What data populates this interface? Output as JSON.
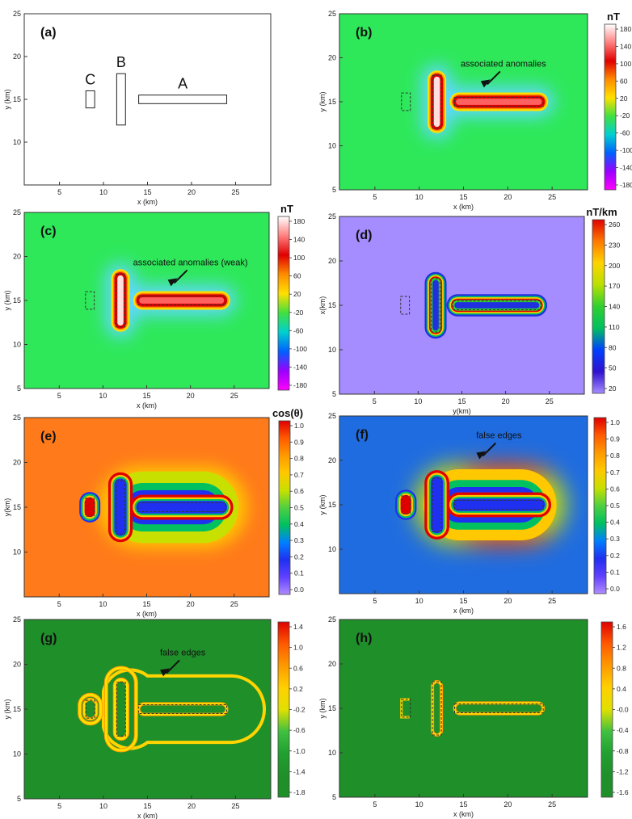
{
  "figure": {
    "panels": [
      {
        "id": "a",
        "label": "(a)",
        "plot": "model",
        "xlabel": "x (km)",
        "ylabel": "y (km)",
        "xticks": [
          5,
          10,
          15,
          20,
          25
        ],
        "yticks": [
          10,
          15,
          20,
          25
        ],
        "xlim": [
          1,
          29
        ],
        "ylim": [
          5,
          25
        ],
        "bodies": [
          {
            "name": "A",
            "x0": 14,
            "x1": 24,
            "y0": 14.5,
            "y1": 15.5
          },
          {
            "name": "B",
            "x0": 11.5,
            "x1": 12.5,
            "y0": 12,
            "y1": 18
          },
          {
            "name": "C",
            "x0": 8,
            "x1": 9,
            "y0": 14,
            "y1": 16
          }
        ]
      },
      {
        "id": "b",
        "label": "(b)",
        "plot": "field",
        "background": "#2ee85a",
        "xlabel": "x (km)",
        "ylabel": "y (km)",
        "xticks": [
          5,
          10,
          15,
          20,
          25
        ],
        "yticks": [
          5,
          10,
          15,
          20,
          25
        ],
        "xlim": [
          1,
          29
        ],
        "ylim": [
          5,
          25
        ],
        "colorbar": {
          "title": "nT",
          "ticks": [
            "180",
            "140",
            "100",
            "60",
            "20",
            "-20",
            "-60",
            "-100",
            "-140",
            "-180"
          ],
          "colors": [
            "#ffffff",
            "#ff8080",
            "#e00000",
            "#ff8c00",
            "#ffe000",
            "#40e040",
            "#00d0d0",
            "#0060ff",
            "#9900ff",
            "#ff00ff"
          ]
        },
        "annotation": {
          "text": "associated anomalies",
          "x": 19.5,
          "y": 19
        }
      },
      {
        "id": "c",
        "label": "(c)",
        "plot": "field",
        "background": "#2ee85a",
        "xlabel": "x (km)",
        "ylabel": "y (km)",
        "xticks": [
          5,
          10,
          15,
          20,
          25
        ],
        "yticks": [
          5,
          10,
          15,
          20,
          25
        ],
        "xlim": [
          1,
          29
        ],
        "ylim": [
          5,
          25
        ],
        "colorbar": {
          "title": "nT",
          "ticks": [
            "180",
            "140",
            "100",
            "60",
            "20",
            "-20",
            "-60",
            "-100",
            "-140",
            "-180"
          ],
          "colors": [
            "#ffffff",
            "#ff8080",
            "#e00000",
            "#ff8c00",
            "#ffe000",
            "#40e040",
            "#00d0d0",
            "#0060ff",
            "#9900ff",
            "#ff00ff"
          ]
        },
        "annotation": {
          "text": "associated anomalies (weak)",
          "x": 20,
          "y": 19
        }
      },
      {
        "id": "d",
        "label": "(d)",
        "plot": "gradient",
        "background": "#a58cff",
        "xlabel": "y(km)",
        "ylabel": "x(km)",
        "xticks": [
          5,
          10,
          15,
          20,
          25
        ],
        "yticks": [
          5,
          10,
          15,
          20,
          25
        ],
        "xlim": [
          1,
          29
        ],
        "ylim": [
          5,
          25
        ],
        "colorbar": {
          "title": "nT/km",
          "ticks": [
            "260",
            "230",
            "200",
            "170",
            "140",
            "110",
            "80",
            "50",
            "20"
          ],
          "colors": [
            "#e00000",
            "#ff7a00",
            "#ffd400",
            "#b8e000",
            "#30d030",
            "#00c060",
            "#0040ff",
            "#3010d0",
            "#a58cff"
          ]
        }
      },
      {
        "id": "e",
        "label": "(e)",
        "plot": "edge",
        "background": "#ff7a1a",
        "xlabel": "x (km)",
        "ylabel": "y(km)",
        "xticks": [
          5,
          10,
          15,
          20,
          25
        ],
        "yticks": [
          10,
          15,
          20,
          25
        ],
        "xlim": [
          1,
          29
        ],
        "ylim": [
          5,
          25
        ],
        "colorbar": {
          "title": "cos(θ)",
          "ticks": [
            "1.0",
            "0.9",
            "0.8",
            "0.7",
            "0.6",
            "0.5",
            "0.4",
            "0.3",
            "0.2",
            "0.1",
            "0.0"
          ],
          "colors": [
            "#e00000",
            "#ff5a00",
            "#ff9a00",
            "#ffc800",
            "#c8e000",
            "#50d040",
            "#00c060",
            "#0080ff",
            "#2030f0",
            "#6040ff",
            "#b08cff"
          ]
        }
      },
      {
        "id": "f",
        "label": "(f)",
        "plot": "edge",
        "background": "#1f6ce0",
        "xlabel": "x (km)",
        "ylabel": "y (km)",
        "xticks": [
          5,
          10,
          15,
          20,
          25
        ],
        "yticks": [
          10,
          15,
          20,
          25
        ],
        "xlim": [
          1,
          29
        ],
        "ylim": [
          5,
          25
        ],
        "colorbar": {
          "title": "",
          "ticks": [
            "1.0",
            "0.9",
            "0.8",
            "0.7",
            "0.6",
            "0.5",
            "0.4",
            "0.3",
            "0.2",
            "0.1",
            "0.0"
          ],
          "colors": [
            "#e00000",
            "#ff5a00",
            "#ff9a00",
            "#ffc800",
            "#c8e000",
            "#50d040",
            "#00c060",
            "#0080ff",
            "#2030f0",
            "#6040ff",
            "#b08cff"
          ]
        },
        "annotation": {
          "text": "false edges",
          "x": 19,
          "y": 22.5
        }
      },
      {
        "id": "g",
        "label": "(g)",
        "plot": "outline",
        "background": "#1f8f2a",
        "xlabel": "x (km)",
        "ylabel": "y (km)",
        "xticks": [
          5,
          10,
          15,
          20,
          25
        ],
        "yticks": [
          5,
          10,
          15,
          20,
          25
        ],
        "xlim": [
          1,
          29
        ],
        "ylim": [
          5,
          25
        ],
        "colorbar": {
          "title": "",
          "ticks": [
            "1.4",
            "1.0",
            "0.6",
            "0.2",
            "-0.2",
            "-0.6",
            "-1.0",
            "-1.4",
            "-1.8"
          ],
          "colors": [
            "#e00000",
            "#ff5a00",
            "#ff9a00",
            "#ffd000",
            "#e0e000",
            "#40c040",
            "#20a030",
            "#1f8f2a",
            "#1f8f2a"
          ]
        },
        "annotation": {
          "text": "false edges",
          "x": 19,
          "y": 21
        }
      },
      {
        "id": "h",
        "label": "(h)",
        "plot": "outline",
        "background": "#1f8f2a",
        "xlabel": "x (km)",
        "ylabel": "y (km)",
        "xticks": [
          5,
          10,
          15,
          20,
          25
        ],
        "yticks": [
          5,
          10,
          15,
          20,
          25
        ],
        "xlim": [
          1,
          29
        ],
        "ylim": [
          5,
          25
        ],
        "colorbar": {
          "title": "",
          "ticks": [
            "1.6",
            "1.2",
            "0.8",
            "0.4",
            "-0.0",
            "-0.4",
            "-0.8",
            "-1.2",
            "-1.6"
          ],
          "colors": [
            "#e00000",
            "#ff5a00",
            "#ff9a00",
            "#ffd000",
            "#e0e000",
            "#40c040",
            "#20a030",
            "#1f8f2a",
            "#1f8f2a"
          ]
        }
      }
    ]
  },
  "chart_data": [
    {
      "type": "other",
      "panel": "(a)",
      "xlabel": "x (km)",
      "ylabel": "y (km)",
      "xlim": [
        1,
        29
      ],
      "ylim": [
        5,
        25
      ],
      "bodies": [
        {
          "name": "A",
          "x": [
            14,
            24
          ],
          "y": [
            14.5,
            15.5
          ]
        },
        {
          "name": "B",
          "x": [
            11.5,
            12.5
          ],
          "y": [
            12,
            18
          ]
        },
        {
          "name": "C",
          "x": [
            8,
            9
          ],
          "y": [
            14,
            16
          ]
        }
      ]
    },
    {
      "type": "heatmap",
      "panel": "(b)",
      "units": "nT",
      "range": [
        -180,
        180
      ],
      "xlabel": "x (km)",
      "ylabel": "y (km)"
    },
    {
      "type": "heatmap",
      "panel": "(c)",
      "units": "nT",
      "range": [
        -180,
        180
      ],
      "xlabel": "x (km)",
      "ylabel": "y (km)"
    },
    {
      "type": "heatmap",
      "panel": "(d)",
      "units": "nT/km",
      "range": [
        20,
        260
      ],
      "xlabel": "y(km)",
      "ylabel": "x(km)"
    },
    {
      "type": "heatmap",
      "panel": "(e)",
      "units": "cos(θ)",
      "range": [
        0.0,
        1.0
      ],
      "xlabel": "x (km)",
      "ylabel": "y(km)"
    },
    {
      "type": "heatmap",
      "panel": "(f)",
      "range": [
        0.0,
        1.0
      ],
      "xlabel": "x (km)",
      "ylabel": "y (km)"
    },
    {
      "type": "heatmap",
      "panel": "(g)",
      "range": [
        -1.8,
        1.4
      ],
      "xlabel": "x (km)",
      "ylabel": "y (km)"
    },
    {
      "type": "heatmap",
      "panel": "(h)",
      "range": [
        -1.6,
        1.6
      ],
      "xlabel": "x (km)",
      "ylabel": "y (km)"
    }
  ]
}
